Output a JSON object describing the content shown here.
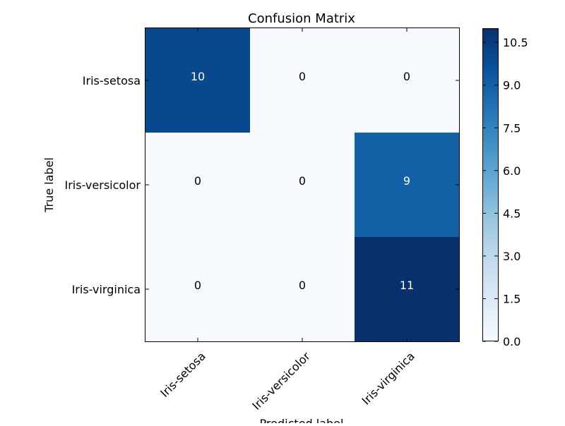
{
  "chart_data": {
    "type": "heatmap",
    "title": "Confusion Matrix",
    "xlabel": "Predicted label",
    "ylabel": "True label",
    "x_categories": [
      "Iris-setosa",
      "Iris-versicolor",
      "Iris-virginica"
    ],
    "y_categories": [
      "Iris-setosa",
      "Iris-versicolor",
      "Iris-virginica"
    ],
    "values": [
      [
        10,
        0,
        0
      ],
      [
        0,
        0,
        9
      ],
      [
        0,
        0,
        11
      ]
    ],
    "colorbar": {
      "min": 0,
      "max": 11,
      "ticks": [
        "0.0",
        "1.5",
        "3.0",
        "4.5",
        "6.0",
        "7.5",
        "9.0",
        "10.5"
      ],
      "colors": [
        "#f7fbff",
        "#deebf7",
        "#c6dbef",
        "#9ecae1",
        "#6baed6",
        "#4292c6",
        "#2171b5",
        "#08519c",
        "#08306b"
      ]
    },
    "grid": false,
    "x_tick_rotation": "45deg"
  }
}
